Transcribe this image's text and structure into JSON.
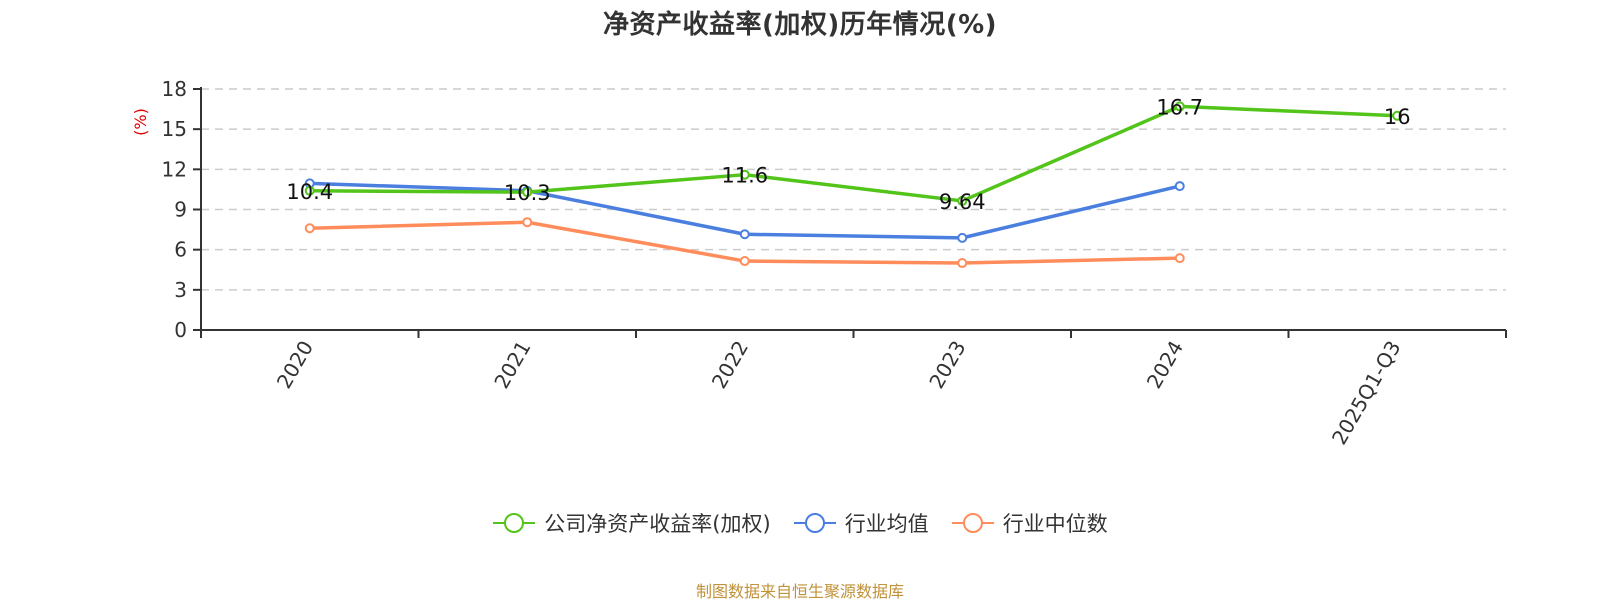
{
  "title": "净资产收益率(加权)历年情况(%)",
  "footer": "制图数据来自恒生聚源数据库",
  "legend": [
    {
      "label": "公司净资产收益率(加权)",
      "color": "#52c41a"
    },
    {
      "label": "行业均值",
      "color": "#4a7fe0"
    },
    {
      "label": "行业中位数",
      "color": "#ff8c5a"
    }
  ],
  "chart_data": {
    "type": "line",
    "title": "净资产收益率(加权)历年情况(%)",
    "xlabel": "",
    "ylabel": "(%)",
    "ylim": [
      0,
      18
    ],
    "yticks": [
      0,
      3,
      6,
      9,
      12,
      15,
      18
    ],
    "grid": true,
    "legend_position": "bottom",
    "categories": [
      "2020",
      "2021",
      "2022",
      "2023",
      "2024",
      "2025Q1-Q3"
    ],
    "series": [
      {
        "name": "公司净资产收益率(加权)",
        "color": "#52c41a",
        "values": [
          10.4,
          10.3,
          11.6,
          9.64,
          16.7,
          16
        ],
        "labels": [
          "10.4",
          "10.3",
          "11.6",
          "9.64",
          "16.7",
          "16"
        ]
      },
      {
        "name": "行业均值",
        "color": "#4a7fe0",
        "values": [
          10.95,
          10.4,
          7.15,
          6.88,
          10.75,
          null
        ]
      },
      {
        "name": "行业中位数",
        "color": "#ff8c5a",
        "values": [
          7.6,
          8.05,
          5.15,
          5.0,
          5.37,
          null
        ]
      }
    ]
  }
}
